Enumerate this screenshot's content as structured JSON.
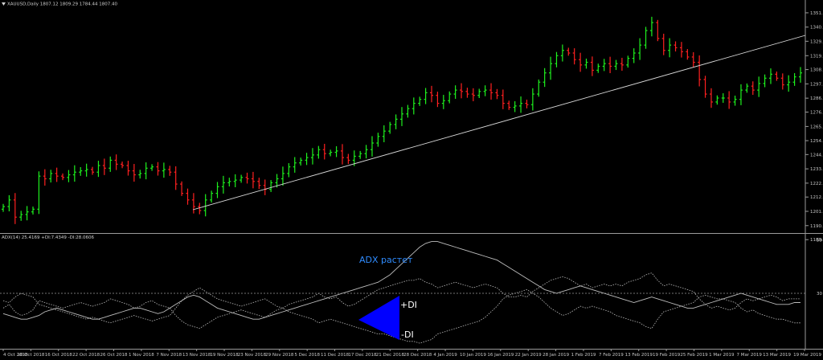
{
  "header": {
    "main_title": "XAUUSD,Daily  1807.12 1809.29 1784.44 1807.40",
    "sub_title": "ADX(14) 25.4169 +DI:7.4349 -DI:28.0606"
  },
  "colors": {
    "background": "#000000",
    "bull": "#1ef01e",
    "bear": "#ff2020",
    "axis_text": "#c8c8c8",
    "trendline": "#d8d8d8",
    "adx_line": "#bdbdbd",
    "di_line": "#bdbdbd",
    "annotation_triangle": "#0000ff",
    "annotation_adx_text": "#2f8cff"
  },
  "icons": {
    "main_title_marker": "triangle-down-icon"
  },
  "annotations": {
    "adx_rising": "ADX растет",
    "plus_di": "+DI",
    "minus_di": "-DI"
  },
  "chart_data": [
    {
      "type": "candlestick",
      "title": "XAUUSD,Daily  1807.12 1809.29 1784.44 1807.40",
      "ylim": [
        1185,
        1355
      ],
      "yticks": [
        "1351.40",
        "1340.60",
        "1329.90",
        "1319.00",
        "1308.50",
        "1297.70",
        "1286.90",
        "1276.40",
        "1265.50",
        "1254.80",
        "1244.30",
        "1233.50",
        "1222.70",
        "1212.20",
        "1201.40",
        "1190.60",
        "1180.00"
      ],
      "xticks": [
        "4 Oct 2018",
        "10 Oct 2018",
        "16 Oct 2018",
        "22 Oct 2018",
        "26 Oct 2018",
        "1 Nov 2018",
        "7 Nov 2018",
        "13 Nov 2018",
        "19 Nov 2018",
        "23 Nov 2018",
        "29 Nov 2018",
        "5 Dec 2018",
        "11 Dec 2018",
        "17 Dec 2018",
        "21 Dec 2018",
        "28 Dec 2018",
        "4 Jan 2019",
        "10 Jan 2019",
        "16 Jan 2019",
        "22 Jan 2019",
        "28 Jan 2019",
        "1 Feb 2019",
        "7 Feb 2019",
        "13 Feb 2019",
        "19 Feb 2019",
        "25 Feb 2019",
        "1 Mar 2019",
        "7 Mar 2019",
        "13 Mar 2019",
        "19 Mar 2019"
      ],
      "closes": [
        1205,
        1210,
        1197,
        1199,
        1201,
        1203,
        1228,
        1226,
        1230,
        1228,
        1227,
        1229,
        1231,
        1232,
        1233,
        1231,
        1236,
        1234,
        1240,
        1237,
        1236,
        1232,
        1229,
        1230,
        1234,
        1235,
        1232,
        1233,
        1231,
        1222,
        1215,
        1210,
        1205,
        1202,
        1210,
        1215,
        1220,
        1223,
        1224,
        1225,
        1227,
        1226,
        1224,
        1221,
        1218,
        1223,
        1226,
        1230,
        1235,
        1238,
        1240,
        1242,
        1244,
        1248,
        1245,
        1246,
        1247,
        1242,
        1240,
        1243,
        1245,
        1248,
        1253,
        1258,
        1262,
        1267,
        1271,
        1275,
        1279,
        1283,
        1286,
        1291,
        1289,
        1283,
        1285,
        1290,
        1293,
        1292,
        1290,
        1289,
        1292,
        1293,
        1291,
        1289,
        1283,
        1280,
        1281,
        1283,
        1282,
        1290,
        1299,
        1306,
        1313,
        1319,
        1323,
        1321,
        1316,
        1312,
        1314,
        1308,
        1311,
        1313,
        1311,
        1313,
        1312,
        1317,
        1321,
        1327,
        1338,
        1344,
        1332,
        1323,
        1327,
        1325,
        1322,
        1318,
        1314,
        1301,
        1290,
        1284,
        1287,
        1287,
        1284,
        1286,
        1293,
        1296,
        1293,
        1298,
        1302,
        1305,
        1302,
        1297,
        1299,
        1303,
        1306
      ]
    },
    {
      "type": "line",
      "title": "ADX(14) 25.4169 +DI:7.4349 -DI:28.0606",
      "ylim": [
        0,
        60
      ],
      "yticks": [
        "59",
        "30"
      ],
      "level": 30,
      "series": [
        {
          "name": "ADX(14)",
          "values": [
            19,
            18,
            17,
            16,
            16,
            17,
            18,
            20,
            21,
            22,
            21,
            20,
            19,
            18,
            17,
            16,
            16,
            17,
            18,
            19,
            20,
            21,
            22,
            22,
            21,
            20,
            19,
            20,
            22,
            24,
            26,
            28,
            29,
            28,
            26,
            24,
            22,
            21,
            20,
            19,
            18,
            17,
            16,
            16,
            17,
            18,
            19,
            20,
            21,
            22,
            23,
            24,
            25,
            26,
            27,
            28,
            29,
            30,
            31,
            32,
            33,
            34,
            35,
            36,
            38,
            40,
            43,
            46,
            49,
            52,
            55,
            57,
            58,
            58,
            57,
            56,
            55,
            54,
            53,
            52,
            51,
            50,
            49,
            48,
            46,
            44,
            42,
            40,
            38,
            36,
            34,
            32,
            31,
            30,
            31,
            32,
            33,
            34,
            33,
            32,
            31,
            30,
            29,
            28,
            27,
            26,
            25,
            26,
            27,
            28,
            27,
            26,
            25,
            24,
            23,
            22,
            22,
            23,
            24,
            25,
            26,
            27,
            28,
            29,
            30,
            29,
            28,
            27,
            26,
            25,
            24,
            24,
            24,
            25,
            25
          ]
        },
        {
          "name": "+DI",
          "values": [
            22,
            24,
            20,
            18,
            19,
            21,
            26,
            25,
            24,
            23,
            22,
            23,
            24,
            25,
            24,
            23,
            24,
            25,
            27,
            26,
            25,
            24,
            22,
            23,
            25,
            26,
            24,
            23,
            22,
            18,
            15,
            13,
            12,
            11,
            13,
            15,
            17,
            18,
            19,
            20,
            21,
            20,
            19,
            18,
            17,
            19,
            21,
            22,
            24,
            25,
            26,
            27,
            28,
            30,
            28,
            27,
            28,
            25,
            23,
            24,
            26,
            28,
            30,
            32,
            33,
            34,
            35,
            36,
            37,
            37,
            38,
            36,
            35,
            33,
            34,
            35,
            36,
            35,
            34,
            33,
            34,
            35,
            34,
            33,
            30,
            28,
            28,
            29,
            28,
            31,
            33,
            35,
            37,
            38,
            39,
            38,
            36,
            34,
            35,
            33,
            34,
            35,
            34,
            35,
            34,
            36,
            37,
            38,
            40,
            41,
            37,
            34,
            35,
            34,
            33,
            32,
            31,
            27,
            24,
            22,
            23,
            22,
            21,
            22,
            25,
            27,
            26,
            27,
            28,
            29,
            28,
            26,
            27,
            27,
            27
          ]
        },
        {
          "name": "-DI",
          "values": [
            26,
            25,
            28,
            30,
            29,
            28,
            24,
            23,
            22,
            21,
            20,
            19,
            18,
            17,
            16,
            17,
            16,
            15,
            14,
            15,
            16,
            17,
            18,
            17,
            16,
            15,
            16,
            17,
            18,
            22,
            26,
            29,
            31,
            33,
            31,
            29,
            27,
            26,
            25,
            24,
            23,
            24,
            25,
            26,
            27,
            25,
            23,
            22,
            20,
            19,
            18,
            17,
            16,
            14,
            15,
            16,
            15,
            14,
            13,
            12,
            11,
            10,
            9,
            8,
            8,
            7,
            6,
            5,
            4,
            4,
            3,
            4,
            5,
            8,
            9,
            10,
            11,
            12,
            13,
            14,
            15,
            17,
            20,
            23,
            27,
            29,
            30,
            31,
            32,
            30,
            28,
            25,
            22,
            20,
            18,
            19,
            21,
            23,
            22,
            23,
            22,
            21,
            20,
            18,
            17,
            16,
            15,
            14,
            12,
            11,
            16,
            20,
            21,
            22,
            23,
            24,
            25,
            28,
            29,
            28,
            27,
            27,
            26,
            25,
            22,
            20,
            21,
            19,
            18,
            17,
            16,
            16,
            15,
            14,
            14
          ]
        }
      ]
    }
  ]
}
